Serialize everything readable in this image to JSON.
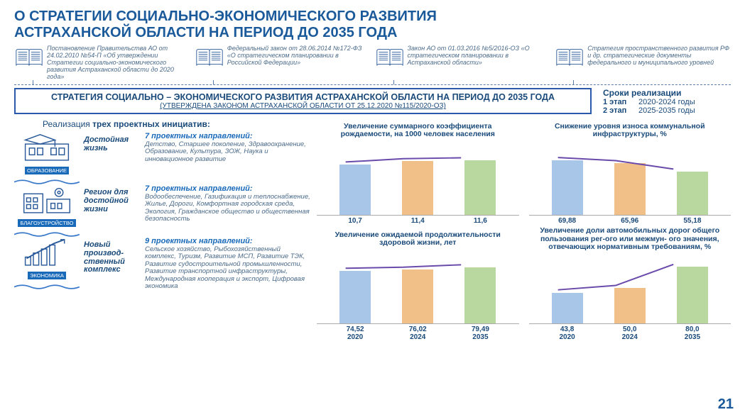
{
  "title_line1": "О СТРАТЕГИИ СОЦИАЛЬНО-ЭКОНОМИЧЕСКОГО РАЗВИТИЯ",
  "title_line2": "АСТРАХАНСКОЙ ОБЛАСТИ  НА ПЕРИОД ДО 2035 ГОДА",
  "docs": [
    "Постановление Правительства АО от 24.02.2010 №54-П «Об утверждении Стратегии социально-экономического развития Астраханской области  до 2020 года»",
    "Федеральный закон от 28.06.2014 №172-ФЗ «О стратегическом планировании в Российской Федерации»",
    "Закон АО от 01.03.2016 №5/2016-ОЗ «О стратегическом планировании в Астраханской области»",
    "Стратегия пространственного развития РФ и др. стратегические документы федерального и муниципального уровней"
  ],
  "banner_t1": "СТРАТЕГИЯ СОЦИАЛЬНО – ЭКОНОМИЧЕСКОГО РАЗВИТИЯ АСТРАХАНСКОЙ ОБЛАСТИ НА ПЕРИОД ДО 2035 ГОДА",
  "banner_t2": "(УТВЕРЖДЕНА ЗАКОНОМ АСТРАХАНСКОЙ ОБЛАСТИ ОТ 25.12.2020 №115/2020-ОЗ)",
  "stages_h": "Сроки реализации",
  "stages": [
    {
      "label": "1 этап",
      "val": "2020-2024 годы"
    },
    {
      "label": "2 этап",
      "val": "2025-2035 годы"
    }
  ],
  "left_title_pre": "Реализация ",
  "left_title_b": "трех проектных инициатив:",
  "initiatives": [
    {
      "tag": "ОБРАЗОВАНИЕ",
      "name": "Достойная жизнь",
      "count": "7 проектных направлений:",
      "text": "Детство, Старшее поколение, Здравоохранение, Образование, Культура, ЗОЖ, Наука и инновационное развитие"
    },
    {
      "tag": "БЛАГОУСТРОЙСТВО",
      "name": "Регион для достойной жизни",
      "count": "7 проектных направлений:",
      "text": "Водообеспечение, Газификация и теплоснабжение, Жилье, Дороги, Комфортная городская среда, Экология, Гражданское общество и общественная безопасность"
    },
    {
      "tag": "ЭКОНОМИКА",
      "name": "Новый производ-ственный комплекс",
      "count": "9 проектных направлений:",
      "text": "Сельское хозяйство, Рыбохозяйственный комплекс, Туризм, Развитие МСП, Развитие ТЭК, Развитие судостроительной промышленности, Развитие транспортной инфраструктуры, Международная кооперация и экспорт, Цифровая экономика"
    }
  ],
  "charts": [
    {
      "title": "Увеличение суммарного коэффициента рождаемости, на 1000 человек населения",
      "values": [
        10.7,
        11.4,
        11.6
      ],
      "labels": [
        "10,7",
        "11,4",
        "11,6"
      ],
      "ymax": 15,
      "colors": [
        "#a8c6e8",
        "#f0c088",
        "#b8d8a0"
      ],
      "line_color": "#6a4aaa",
      "show_xlabels": false
    },
    {
      "title": "Снижение уровня износа коммунальной инфраструктуры, %",
      "values": [
        69.88,
        65.96,
        55.18
      ],
      "labels": [
        "69,88",
        "65,96",
        "55,18"
      ],
      "ymax": 90,
      "colors": [
        "#a8c6e8",
        "#f0c088",
        "#b8d8a0"
      ],
      "line_color": "#6a4aaa",
      "line_dir": "down",
      "show_xlabels": false
    },
    {
      "title": "Увеличение ожидаемой продолжительности здоровой жизни, лет",
      "values": [
        74.52,
        76.02,
        79.49
      ],
      "labels": [
        "74,52",
        "76,02",
        "79,49"
      ],
      "ymax": 100,
      "colors": [
        "#a8c6e8",
        "#f0c088",
        "#b8d8a0"
      ],
      "line_color": "#6a4aaa",
      "show_xlabels": true
    },
    {
      "title": "Увеличение доли автомобильных дорог общего пользования рег-ого или межмун- ого  значения, отвечающих нормативным требованиям, %",
      "values": [
        43.8,
        50.0,
        80.0
      ],
      "labels": [
        "43,8",
        "50,0",
        "80,0"
      ],
      "ymax": 100,
      "colors": [
        "#a8c6e8",
        "#f0c088",
        "#b8d8a0"
      ],
      "line_color": "#6a4aaa",
      "show_xlabels": true
    }
  ],
  "xcats": [
    "2020",
    "2024",
    "2035"
  ],
  "page_num": "21",
  "wave_color": "#3a7aca",
  "icon_stroke": "#2a5a9a"
}
